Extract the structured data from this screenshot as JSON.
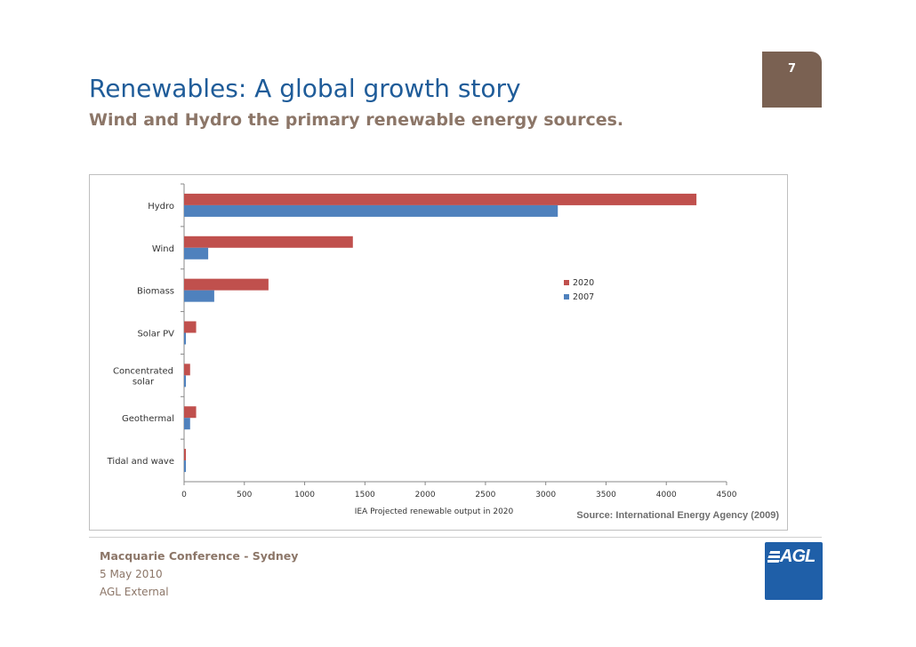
{
  "slide": {
    "page_number": "7",
    "title": "Renewables: A global growth story",
    "subtitle": "Wind and Hydro the primary renewable energy sources."
  },
  "source_note": "Source: International Energy Agency (2009)",
  "footer": {
    "line1": "Macquarie Conference - Sydney",
    "line2": "5 May 2010",
    "line3": "AGL External"
  },
  "logo": {
    "text": "AGL"
  },
  "colors": {
    "series_2020": "#c0504d",
    "series_2007": "#4f81bd",
    "accent_title": "#1f5c99",
    "brown": "#7a6152"
  },
  "chart_data": {
    "type": "bar",
    "orientation": "horizontal",
    "categories": [
      "Hydro",
      "Wind",
      "Biomass",
      "Solar PV",
      "Concentrated solar",
      "Geothermal",
      "Tidal and wave"
    ],
    "series": [
      {
        "name": "2020",
        "values": [
          4250,
          1400,
          700,
          100,
          50,
          100,
          15
        ]
      },
      {
        "name": "2007",
        "values": [
          3100,
          200,
          250,
          15,
          15,
          50,
          15
        ]
      }
    ],
    "xlabel": "IEA Projected renewable output in 2020",
    "ylabel": "",
    "xlim": [
      0,
      4500
    ],
    "xticks": [
      0,
      500,
      1000,
      1500,
      2000,
      2500,
      3000,
      3500,
      4000,
      4500
    ],
    "legend": "right",
    "grid": false
  }
}
